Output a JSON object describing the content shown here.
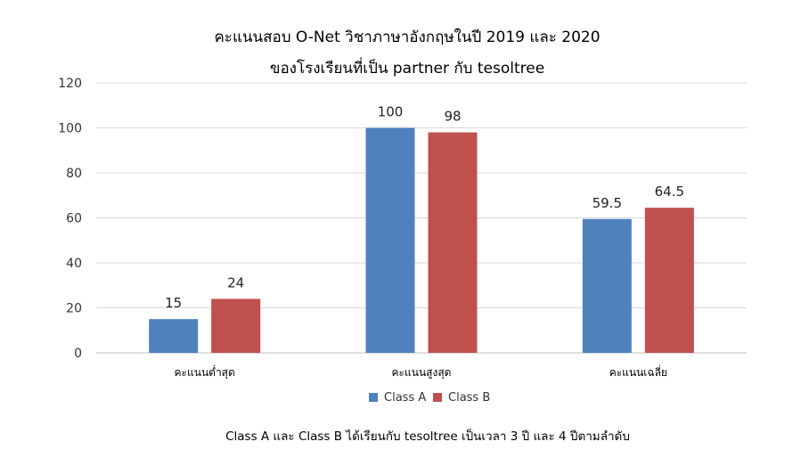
{
  "chart_data": {
    "type": "bar",
    "title_line1": "คะแนนสอบ O-Net วิชาภาษาอังกฤษในปี 2019 และ 2020",
    "title_line2": "ของโรงเรียนที่เป็น partner กับ tesoltree",
    "categories": [
      "คะแนนต่ำสุด",
      "คะแนนสูงสุด",
      "คะแนนเฉลี่ย"
    ],
    "series": [
      {
        "name": "Class A",
        "color": "#4f81bd",
        "values": [
          15,
          100,
          59.5
        ]
      },
      {
        "name": "Class B",
        "color": "#c0504d",
        "values": [
          24,
          98,
          64.5
        ]
      }
    ],
    "ylim": [
      0,
      120
    ],
    "yticks": [
      0,
      20,
      40,
      60,
      80,
      100,
      120
    ],
    "grid": true,
    "legend_position": "bottom",
    "footnote": "Class A และ Class B ได้เรียนกับ tesoltree เป็นเวลา 3 ปี และ 4 ปีตามลำดับ"
  }
}
